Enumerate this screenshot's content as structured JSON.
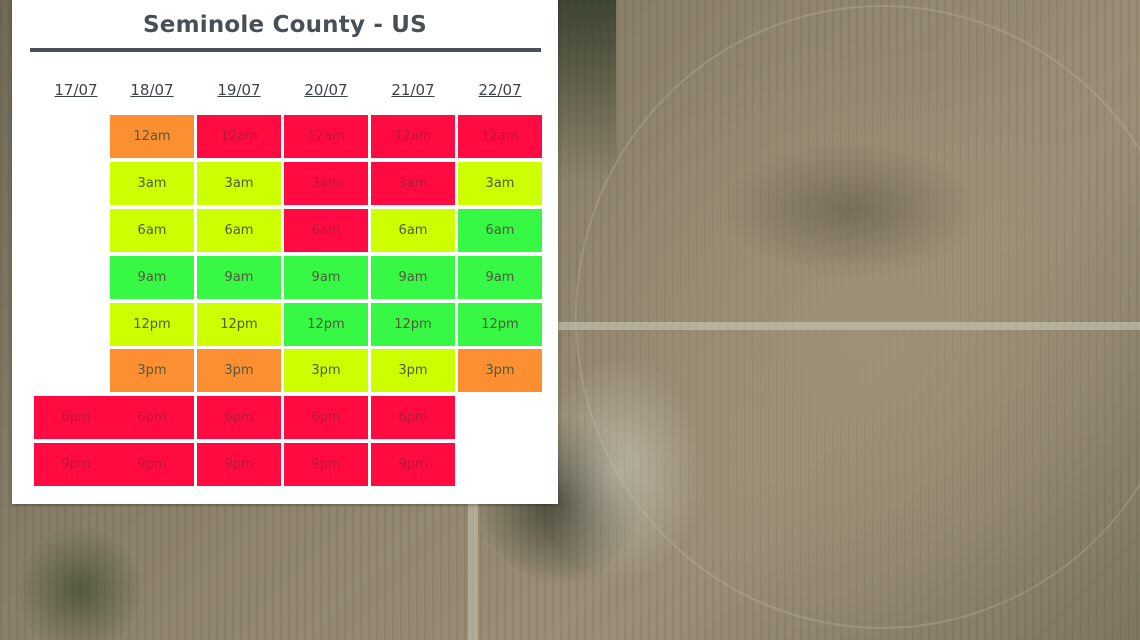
{
  "title": "Seminole County - US",
  "colors": {
    "red": "#ff0b42",
    "orange": "#fb8f31",
    "yellow": "#cdff00",
    "green": "#36f845"
  },
  "dates": [
    "17/07",
    "18/07",
    "19/07",
    "20/07",
    "21/07",
    "22/07"
  ],
  "time_slots": [
    "12am",
    "3am",
    "6am",
    "9am",
    "12pm",
    "3pm",
    "6pm",
    "9pm"
  ],
  "grid": [
    [
      null,
      "orange",
      "red",
      "red",
      "red",
      "red"
    ],
    [
      null,
      "yellow",
      "yellow",
      "red",
      "red",
      "yellow"
    ],
    [
      null,
      "yellow",
      "yellow",
      "red",
      "yellow",
      "green"
    ],
    [
      null,
      "green",
      "green",
      "green",
      "green",
      "green"
    ],
    [
      null,
      "yellow",
      "yellow",
      "green",
      "green",
      "green"
    ],
    [
      null,
      "orange",
      "orange",
      "yellow",
      "yellow",
      "orange"
    ],
    [
      "red",
      "red",
      "red",
      "red",
      "red",
      null
    ],
    [
      "red",
      "red",
      "red",
      "red",
      "red",
      null
    ]
  ]
}
